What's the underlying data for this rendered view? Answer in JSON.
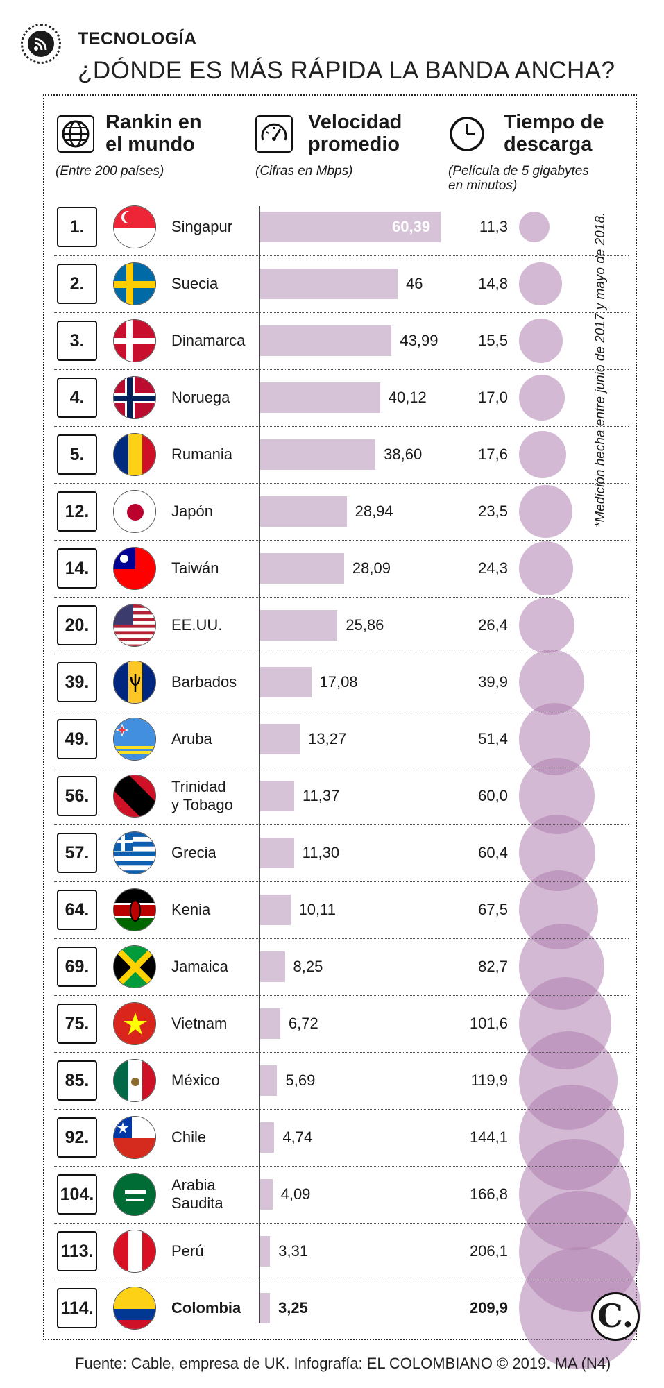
{
  "section": "TECNOLOGÍA",
  "title": "¿DÓNDE ES MÁS RÁPIDA LA BANDA ANCHA?",
  "headers": {
    "rank": {
      "line1": "Rankin en",
      "line2": "el mundo",
      "sub": "(Entre 200 países)"
    },
    "speed": {
      "line1": "Velocidad",
      "line2": "promedio",
      "sub": "(Cifras en Mbps)"
    },
    "time": {
      "line1": "Tiempo de",
      "line2": "descarga",
      "sub1": "(Película de 5 gigabytes",
      "sub2": "en minutos)"
    }
  },
  "note": "*Medición hecha entre junio de 2017 y mayo de 2018.",
  "source": "Fuente: Cable, empresa de UK. Infografía: EL COLOMBIANO © 2019. MA (N4)",
  "badge": "C.",
  "colors": {
    "bar": "#d7c3d8",
    "bubble": "#af80af"
  },
  "chart_data": {
    "type": "bar",
    "title": "¿DÓNDE ES MÁS RÁPIDA LA BANDA ANCHA?",
    "xlabel": "Velocidad promedio (Cifras en Mbps)",
    "ylabel": "Rankin en el mundo (Entre 200 países)",
    "rows": [
      {
        "rank": "1.",
        "country": [
          "Singapur"
        ],
        "speed": 60.39,
        "speed_label": "60,39",
        "time": 11.3,
        "time_label": "11,3",
        "flag": "singapore"
      },
      {
        "rank": "2.",
        "country": [
          "Suecia"
        ],
        "speed": 46,
        "speed_label": "46",
        "time": 14.8,
        "time_label": "14,8",
        "flag": "sweden"
      },
      {
        "rank": "3.",
        "country": [
          "Dinamarca"
        ],
        "speed": 43.99,
        "speed_label": "43,99",
        "time": 15.5,
        "time_label": "15,5",
        "flag": "denmark"
      },
      {
        "rank": "4.",
        "country": [
          "Noruega"
        ],
        "speed": 40.12,
        "speed_label": "40,12",
        "time": 17.0,
        "time_label": "17,0",
        "flag": "norway"
      },
      {
        "rank": "5.",
        "country": [
          "Rumania"
        ],
        "speed": 38.6,
        "speed_label": "38,60",
        "time": 17.6,
        "time_label": "17,6",
        "flag": "romania"
      },
      {
        "rank": "12.",
        "country": [
          "Japón"
        ],
        "speed": 28.94,
        "speed_label": "28,94",
        "time": 23.5,
        "time_label": "23,5",
        "flag": "japan"
      },
      {
        "rank": "14.",
        "country": [
          "Taiwán"
        ],
        "speed": 28.09,
        "speed_label": "28,09",
        "time": 24.3,
        "time_label": "24,3",
        "flag": "taiwan"
      },
      {
        "rank": "20.",
        "country": [
          "EE.UU."
        ],
        "speed": 25.86,
        "speed_label": "25,86",
        "time": 26.4,
        "time_label": "26,4",
        "flag": "usa"
      },
      {
        "rank": "39.",
        "country": [
          "Barbados"
        ],
        "speed": 17.08,
        "speed_label": "17,08",
        "time": 39.9,
        "time_label": "39,9",
        "flag": "barbados"
      },
      {
        "rank": "49.",
        "country": [
          "Aruba"
        ],
        "speed": 13.27,
        "speed_label": "13,27",
        "time": 51.4,
        "time_label": "51,4",
        "flag": "aruba"
      },
      {
        "rank": "56.",
        "country": [
          "Trinidad",
          "y Tobago"
        ],
        "speed": 11.37,
        "speed_label": "11,37",
        "time": 60.0,
        "time_label": "60,0",
        "flag": "trinidad"
      },
      {
        "rank": "57.",
        "country": [
          "Grecia"
        ],
        "speed": 11.3,
        "speed_label": "11,30",
        "time": 60.4,
        "time_label": "60,4",
        "flag": "greece"
      },
      {
        "rank": "64.",
        "country": [
          "Kenia"
        ],
        "speed": 10.11,
        "speed_label": "10,11",
        "time": 67.5,
        "time_label": "67,5",
        "flag": "kenya"
      },
      {
        "rank": "69.",
        "country": [
          "Jamaica"
        ],
        "speed": 8.25,
        "speed_label": "8,25",
        "time": 82.7,
        "time_label": "82,7",
        "flag": "jamaica"
      },
      {
        "rank": "75.",
        "country": [
          "Vietnam"
        ],
        "speed": 6.72,
        "speed_label": "6,72",
        "time": 101.6,
        "time_label": "101,6",
        "flag": "vietnam"
      },
      {
        "rank": "85.",
        "country": [
          "México"
        ],
        "speed": 5.69,
        "speed_label": "5,69",
        "time": 119.9,
        "time_label": "119,9",
        "flag": "mexico"
      },
      {
        "rank": "92.",
        "country": [
          "Chile"
        ],
        "speed": 4.74,
        "speed_label": "4,74",
        "time": 144.1,
        "time_label": "144,1",
        "flag": "chile"
      },
      {
        "rank": "104.",
        "country": [
          "Arabia",
          "Saudita"
        ],
        "speed": 4.09,
        "speed_label": "4,09",
        "time": 166.8,
        "time_label": "166,8",
        "flag": "saudi"
      },
      {
        "rank": "113.",
        "country": [
          "Perú"
        ],
        "speed": 3.31,
        "speed_label": "3,31",
        "time": 206.1,
        "time_label": "206,1",
        "flag": "peru"
      },
      {
        "rank": "114.",
        "country": [
          "Colombia"
        ],
        "speed": 3.25,
        "speed_label": "3,25",
        "time": 209.9,
        "time_label": "209,9",
        "flag": "colombia",
        "highlight": true
      }
    ]
  }
}
